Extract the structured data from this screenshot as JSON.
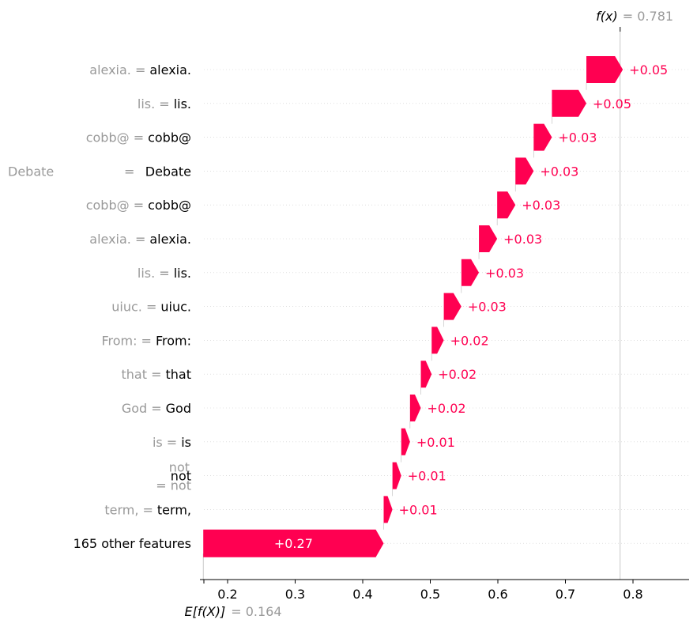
{
  "chart_data": {
    "type": "waterfall",
    "fx_label": "f(x)",
    "fx_value": "= 0.781",
    "ex_label": "E[f(X)]",
    "ex_value": "= 0.164",
    "base_value": 0.164,
    "final_value": 0.781,
    "xlim": [
      0.16,
      0.88
    ],
    "xticks": [
      0.2,
      0.3,
      0.4,
      0.5,
      0.6,
      0.7,
      0.8
    ],
    "color": "#ff0051",
    "features": [
      {
        "name": "alexia.",
        "value": "alexia.",
        "contribution": 0.054,
        "label": "+0.05"
      },
      {
        "name": "lis.",
        "value": "lis.",
        "contribution": 0.051,
        "label": "+0.05"
      },
      {
        "name": "cobb@",
        "value": "cobb@",
        "contribution": 0.027,
        "label": "+0.03"
      },
      {
        "name": "Debate",
        "value": "Debate",
        "contribution": 0.027,
        "label": "+0.03"
      },
      {
        "name": "cobb@",
        "value": "cobb@",
        "contribution": 0.027,
        "label": "+0.03"
      },
      {
        "name": "alexia.",
        "value": "alexia.",
        "contribution": 0.027,
        "label": "+0.03"
      },
      {
        "name": "lis.",
        "value": "lis.",
        "contribution": 0.026,
        "label": "+0.03"
      },
      {
        "name": "uiuc.",
        "value": "uiuc.",
        "contribution": 0.026,
        "label": "+0.03"
      },
      {
        "name": "From:",
        "value": "From:",
        "contribution": 0.018,
        "label": "+0.02"
      },
      {
        "name": "that",
        "value": "that",
        "contribution": 0.016,
        "label": "+0.02"
      },
      {
        "name": "God",
        "value": "God",
        "contribution": 0.016,
        "label": "+0.02"
      },
      {
        "name": "is",
        "value": "is",
        "contribution": 0.013,
        "label": "+0.01"
      },
      {
        "name": "not",
        "value": "not",
        "contribution": 0.013,
        "label": "+0.01"
      },
      {
        "name": "term,",
        "value": "term,",
        "contribution": 0.013,
        "label": "+0.01"
      },
      {
        "name": "165 other features",
        "value": "",
        "contribution": 0.267,
        "label": "+0.27"
      }
    ]
  }
}
